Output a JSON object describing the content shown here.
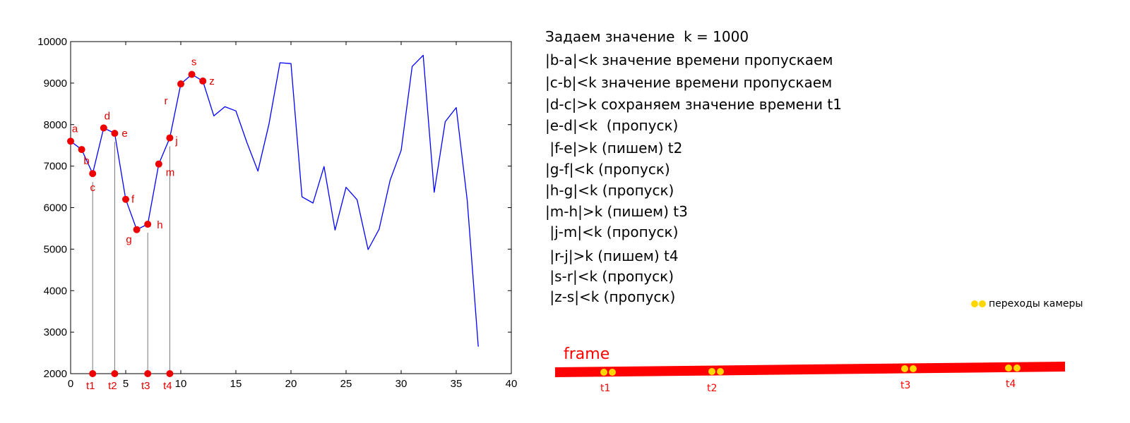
{
  "chart_data": {
    "type": "line",
    "x": [
      0,
      1,
      2,
      3,
      4,
      5,
      6,
      7,
      8,
      9,
      10,
      11,
      12,
      13,
      14,
      15,
      16,
      17,
      18,
      19,
      20,
      21,
      22,
      23,
      24,
      25,
      26,
      27,
      28,
      29,
      30,
      31,
      32,
      33,
      34,
      35,
      36,
      37
    ],
    "series": [
      {
        "values": [
          7600,
          7400,
          6820,
          7920,
          7790,
          6200,
          5470,
          5600,
          7050,
          7680,
          8980,
          9210,
          9050,
          8210,
          8430,
          8330,
          7570,
          6880,
          8010,
          9490,
          9470,
          6260,
          6110,
          6990,
          5460,
          6490,
          6190,
          4990,
          5480,
          6660,
          7380,
          9400,
          9670,
          6370,
          8070,
          8410,
          6170,
          2650
        ]
      }
    ],
    "xlim": [
      0,
      40
    ],
    "ylim": [
      2000,
      10000
    ],
    "xticks": [
      "0",
      "5",
      "10",
      "15",
      "20",
      "25",
      "30",
      "35",
      "40"
    ],
    "yticks": [
      "2000",
      "3000",
      "4000",
      "5000",
      "6000",
      "7000",
      "8000",
      "9000",
      "10000"
    ],
    "line_color": "#0000ff",
    "marker_color": "#ee0000",
    "points": [
      {
        "label": "a",
        "x": 0,
        "y": 7600
      },
      {
        "label": "b",
        "x": 1,
        "y": 7400
      },
      {
        "label": "c",
        "x": 2,
        "y": 6820
      },
      {
        "label": "d",
        "x": 3,
        "y": 7920
      },
      {
        "label": "e",
        "x": 4,
        "y": 7790
      },
      {
        "label": "f",
        "x": 5,
        "y": 6200
      },
      {
        "label": "g",
        "x": 6,
        "y": 5470
      },
      {
        "label": "h",
        "x": 7,
        "y": 5600
      },
      {
        "label": "m",
        "x": 8,
        "y": 7050
      },
      {
        "label": "j",
        "x": 9,
        "y": 7680
      },
      {
        "label": "r",
        "x": 10,
        "y": 8980
      },
      {
        "label": "s",
        "x": 11,
        "y": 9210
      },
      {
        "label": "z",
        "x": 12,
        "y": 9050
      }
    ],
    "time_marks": [
      {
        "label": "t1",
        "x": 2
      },
      {
        "label": "t2",
        "x": 4
      },
      {
        "label": "t3",
        "x": 7
      },
      {
        "label": "t4",
        "x": 9
      }
    ]
  },
  "explanation": [
    "Задаем значение  k = 1000",
    "|b-a|<k значение времени пропускаем",
    "|c-b|<k значение времени пропускаем",
    "|d-c|>k сохраняем значение времени t1",
    "|e-d|<k  (пропуск)",
    " |f-e|>k (пишем) t2",
    "|g-f|<k (пропуск)",
    "|h-g|<k (пропуск)",
    "|m-h|>k (пишем) t3",
    " |j-m|<k (пропуск)",
    " |r-j|>k (пишем) t4",
    " |s-r|<k (пропуск)",
    " |z-s|<k (пропуск)"
  ],
  "legend": {
    "label": "переходы камеры",
    "dot_color": "#ffd700"
  },
  "frame": {
    "label": "frame",
    "bar_color": "#ff0000",
    "transitions": [
      "t1",
      "t2",
      "t3",
      "t4"
    ]
  }
}
